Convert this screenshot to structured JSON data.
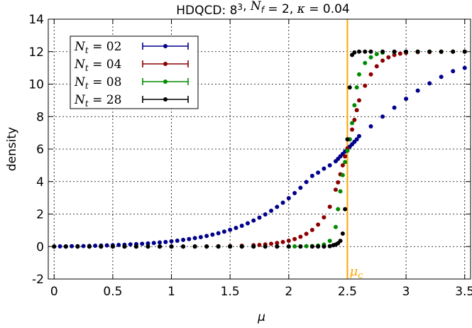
{
  "chart_data": {
    "type": "scatter",
    "title": "HDQCD: 8³, N_f = 2, κ = 0.04",
    "xlabel": "μ",
    "ylabel": "density",
    "xlim": [
      -0.05,
      3.55
    ],
    "ylim": [
      -2,
      14
    ],
    "x_ticks": [
      0,
      0.5,
      1,
      1.5,
      2,
      2.5,
      3,
      3.5
    ],
    "x_tick_labels": [
      "0",
      "0.5",
      "1",
      "1.5",
      "2",
      "2.5",
      "3",
      "3.5"
    ],
    "y_ticks": [
      -2,
      0,
      2,
      4,
      6,
      8,
      10,
      12,
      14
    ],
    "y_tick_labels": [
      "-2",
      "0",
      "2",
      "4",
      "6",
      "8",
      "10",
      "12",
      "14"
    ],
    "grid": true,
    "legend_position": "top-left",
    "vertical_line": {
      "x": 2.5,
      "label": "μ_c",
      "color": "#ffa500"
    },
    "series": [
      {
        "name": "N_t = 02",
        "color": "#00008b",
        "x": [
          0,
          0.05,
          0.1,
          0.15,
          0.2,
          0.25,
          0.3,
          0.35,
          0.4,
          0.45,
          0.5,
          0.55,
          0.6,
          0.65,
          0.7,
          0.75,
          0.8,
          0.85,
          0.9,
          0.95,
          1.0,
          1.05,
          1.1,
          1.15,
          1.2,
          1.25,
          1.3,
          1.35,
          1.4,
          1.45,
          1.5,
          1.55,
          1.6,
          1.65,
          1.7,
          1.75,
          1.8,
          1.85,
          1.9,
          1.95,
          2.0,
          2.05,
          2.1,
          2.15,
          2.2,
          2.25,
          2.3,
          2.35,
          2.4,
          2.42,
          2.44,
          2.46,
          2.48,
          2.5,
          2.52,
          2.54,
          2.56,
          2.58,
          2.6,
          2.7,
          2.8,
          2.9,
          3.0,
          3.1,
          3.2,
          3.3,
          3.4,
          3.5
        ],
        "y": [
          0,
          0.01,
          0.01,
          0.02,
          0.02,
          0.03,
          0.04,
          0.05,
          0.06,
          0.07,
          0.08,
          0.1,
          0.11,
          0.13,
          0.15,
          0.17,
          0.19,
          0.22,
          0.25,
          0.28,
          0.32,
          0.36,
          0.41,
          0.46,
          0.52,
          0.58,
          0.65,
          0.73,
          0.82,
          0.92,
          1.03,
          1.15,
          1.28,
          1.43,
          1.6,
          1.78,
          1.98,
          2.2,
          2.44,
          2.7,
          2.98,
          3.29,
          3.62,
          3.97,
          4.35,
          4.55,
          4.8,
          5.0,
          5.25,
          5.4,
          5.55,
          5.7,
          5.85,
          6.0,
          6.15,
          6.3,
          6.45,
          6.6,
          6.8,
          7.4,
          8.0,
          8.55,
          9.1,
          9.6,
          10.05,
          10.45,
          10.8,
          11.0
        ]
      },
      {
        "name": "N_t = 04",
        "color": "#8b0000",
        "x": [
          0,
          0.1,
          0.2,
          0.3,
          0.4,
          0.5,
          0.6,
          0.7,
          0.8,
          0.9,
          1.0,
          1.1,
          1.2,
          1.3,
          1.4,
          1.5,
          1.6,
          1.7,
          1.75,
          1.8,
          1.85,
          1.9,
          1.95,
          2.0,
          2.05,
          2.1,
          2.15,
          2.2,
          2.25,
          2.3,
          2.35,
          2.4,
          2.42,
          2.44,
          2.46,
          2.48,
          2.5,
          2.52,
          2.54,
          2.56,
          2.58,
          2.6,
          2.65,
          2.7,
          2.75,
          2.8,
          2.85,
          2.9,
          2.95,
          3.0,
          3.1,
          3.2,
          3.3,
          3.4,
          3.5
        ],
        "y": [
          0,
          0,
          0,
          0,
          0,
          0,
          0,
          0,
          0,
          0,
          0,
          0,
          0.01,
          0.01,
          0.02,
          0.03,
          0.05,
          0.08,
          0.1,
          0.13,
          0.17,
          0.22,
          0.28,
          0.36,
          0.46,
          0.6,
          0.78,
          1.02,
          1.35,
          1.8,
          2.45,
          3.5,
          3.95,
          4.45,
          5.0,
          5.55,
          6.05,
          6.6,
          7.2,
          7.8,
          8.4,
          9.0,
          9.9,
          10.6,
          11.1,
          11.45,
          11.65,
          11.8,
          11.88,
          11.93,
          11.97,
          11.98,
          11.99,
          12.0,
          12.0
        ]
      },
      {
        "name": "N_t = 08",
        "color": "#008b00",
        "x": [
          0,
          0.1,
          0.2,
          0.3,
          0.4,
          0.5,
          0.6,
          0.7,
          0.8,
          0.9,
          1.0,
          1.1,
          1.2,
          1.3,
          1.4,
          1.5,
          1.6,
          1.7,
          1.8,
          1.9,
          2.0,
          2.05,
          2.1,
          2.15,
          2.2,
          2.25,
          2.3,
          2.35,
          2.4,
          2.42,
          2.44,
          2.46,
          2.48,
          2.5,
          2.52,
          2.54,
          2.56,
          2.58,
          2.6,
          2.65,
          2.7,
          2.75,
          2.8,
          2.9,
          3.0,
          3.1,
          3.2,
          3.3,
          3.4,
          3.5
        ],
        "y": [
          0,
          0,
          0,
          0,
          0,
          0,
          0,
          0,
          0,
          0,
          0,
          0,
          0,
          0,
          0,
          0,
          0,
          0,
          0,
          0,
          0,
          0.01,
          0.01,
          0.02,
          0.03,
          0.06,
          0.12,
          0.35,
          1.2,
          2.3,
          3.4,
          4.4,
          5.2,
          5.9,
          6.6,
          7.6,
          8.7,
          9.8,
          10.6,
          11.3,
          11.65,
          11.85,
          11.94,
          11.98,
          11.99,
          12.0,
          12.0,
          12.0,
          12.0,
          12.0
        ]
      },
      {
        "name": "N_t = 28",
        "color": "#000000",
        "x": [
          0,
          0.1,
          0.2,
          0.3,
          0.4,
          0.5,
          0.6,
          0.7,
          0.8,
          0.9,
          1.0,
          1.1,
          1.2,
          1.3,
          1.4,
          1.5,
          1.6,
          1.7,
          1.8,
          1.9,
          2.0,
          2.1,
          2.2,
          2.25,
          2.3,
          2.35,
          2.38,
          2.4,
          2.42,
          2.44,
          2.46,
          2.48,
          2.5,
          2.52,
          2.54,
          2.56,
          2.6,
          2.65,
          2.7,
          2.8,
          2.9,
          3.0,
          3.1,
          3.2,
          3.3,
          3.4,
          3.5
        ],
        "y": [
          0,
          0,
          0,
          0,
          0,
          0,
          0,
          0,
          0,
          0,
          0,
          0,
          0,
          0,
          0,
          0,
          0,
          0,
          0,
          0,
          0,
          0,
          0,
          0,
          0,
          0.02,
          0.08,
          0.12,
          0.2,
          0.35,
          0.8,
          2.3,
          6.6,
          9.8,
          11.8,
          11.95,
          12.0,
          12.0,
          12.0,
          12.0,
          12.0,
          12.0,
          12.0,
          12.0,
          12.0,
          12.0,
          12.0
        ]
      }
    ]
  }
}
